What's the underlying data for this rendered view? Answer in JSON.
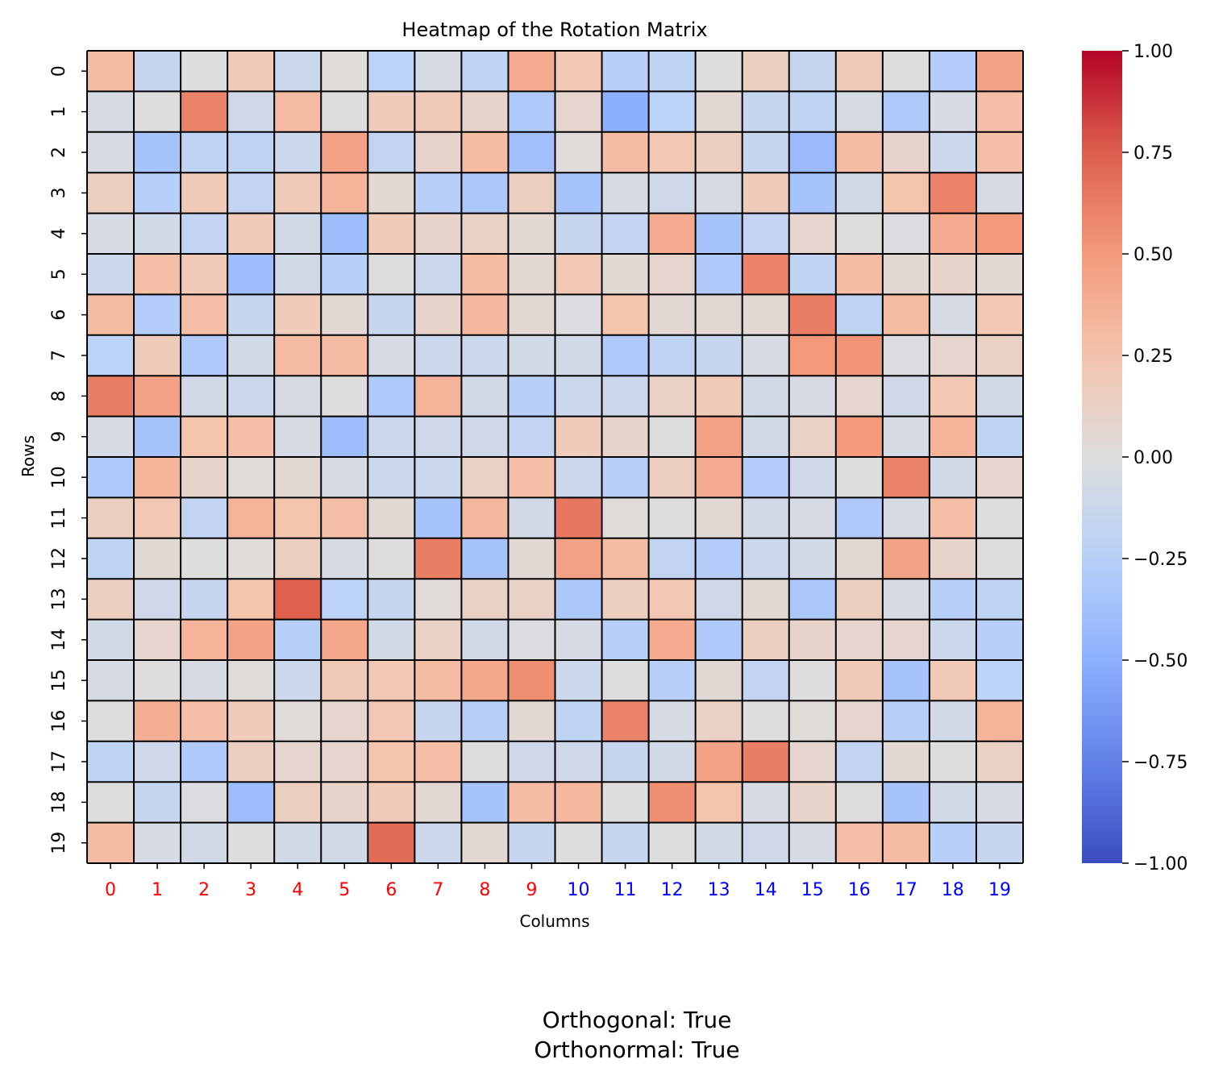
{
  "chart_data": {
    "type": "heatmap",
    "title": "Heatmap of the Rotation Matrix",
    "xlabel": "Columns",
    "ylabel": "Rows",
    "colormap": "coolwarm",
    "vmin": -1.0,
    "vmax": 1.0,
    "rows": [
      "0",
      "1",
      "2",
      "3",
      "4",
      "5",
      "6",
      "7",
      "8",
      "9",
      "10",
      "11",
      "12",
      "13",
      "14",
      "15",
      "16",
      "17",
      "18",
      "19"
    ],
    "columns": [
      "0",
      "1",
      "2",
      "3",
      "4",
      "5",
      "6",
      "7",
      "8",
      "9",
      "10",
      "11",
      "12",
      "13",
      "14",
      "15",
      "16",
      "17",
      "18",
      "19"
    ],
    "column_label_colors": [
      "#ff0000",
      "#ff0000",
      "#ff0000",
      "#ff0000",
      "#ff0000",
      "#ff0000",
      "#ff0000",
      "#ff0000",
      "#ff0000",
      "#ff0000",
      "#0000ff",
      "#0000ff",
      "#0000ff",
      "#0000ff",
      "#0000ff",
      "#0000ff",
      "#0000ff",
      "#0000ff",
      "#0000ff",
      "#0000ff"
    ],
    "colorbar_ticks": [
      "1.00",
      "0.75",
      "0.50",
      "0.25",
      "0.00",
      "−0.25",
      "−0.50",
      "−0.75",
      "−1.00"
    ],
    "colorbar_tick_values": [
      1.0,
      0.75,
      0.5,
      0.25,
      0.0,
      -0.25,
      -0.5,
      -0.75,
      -1.0
    ],
    "values": [
      [
        0.3,
        -0.15,
        0.0,
        0.2,
        -0.12,
        0.02,
        -0.22,
        -0.05,
        -0.2,
        0.4,
        0.22,
        -0.25,
        -0.2,
        0.0,
        0.15,
        -0.15,
        0.2,
        0.0,
        -0.28,
        0.45
      ],
      [
        -0.05,
        0.0,
        0.6,
        -0.1,
        0.3,
        0.0,
        0.18,
        0.2,
        0.1,
        -0.3,
        0.08,
        -0.5,
        -0.22,
        0.05,
        -0.15,
        -0.2,
        -0.05,
        -0.3,
        -0.05,
        0.28
      ],
      [
        -0.05,
        -0.35,
        -0.2,
        -0.2,
        -0.12,
        0.45,
        -0.18,
        0.1,
        0.3,
        -0.38,
        0.02,
        0.3,
        0.22,
        0.15,
        -0.15,
        -0.42,
        0.3,
        0.1,
        -0.12,
        0.28
      ],
      [
        0.15,
        -0.25,
        0.2,
        -0.18,
        0.2,
        0.35,
        0.05,
        -0.25,
        -0.32,
        0.15,
        -0.35,
        -0.05,
        -0.1,
        -0.05,
        0.18,
        -0.35,
        -0.08,
        0.25,
        0.6,
        -0.05
      ],
      [
        -0.05,
        -0.08,
        -0.18,
        0.2,
        -0.08,
        -0.4,
        0.2,
        0.1,
        0.12,
        0.05,
        -0.15,
        -0.18,
        0.4,
        -0.35,
        -0.18,
        0.08,
        0.0,
        -0.02,
        0.4,
        0.5
      ],
      [
        -0.12,
        0.28,
        0.2,
        -0.4,
        -0.08,
        -0.25,
        0.0,
        -0.12,
        0.3,
        0.05,
        0.22,
        0.05,
        0.08,
        -0.3,
        0.6,
        -0.2,
        0.3,
        0.05,
        0.1,
        0.05
      ],
      [
        0.3,
        -0.28,
        0.28,
        -0.15,
        0.18,
        0.05,
        -0.15,
        0.1,
        0.32,
        0.05,
        -0.02,
        0.25,
        0.05,
        0.05,
        0.05,
        0.62,
        -0.2,
        0.3,
        -0.05,
        0.22
      ],
      [
        -0.22,
        0.18,
        -0.3,
        -0.08,
        0.3,
        0.3,
        -0.05,
        -0.12,
        -0.12,
        -0.08,
        -0.08,
        -0.3,
        -0.2,
        -0.15,
        -0.05,
        0.5,
        0.52,
        -0.02,
        0.08,
        0.12
      ],
      [
        0.62,
        0.45,
        -0.08,
        -0.12,
        -0.05,
        0.0,
        -0.3,
        0.35,
        -0.08,
        -0.25,
        -0.12,
        -0.12,
        0.12,
        0.2,
        -0.08,
        -0.05,
        0.08,
        -0.1,
        0.22,
        -0.08
      ],
      [
        -0.05,
        -0.35,
        0.25,
        0.28,
        -0.05,
        -0.4,
        -0.12,
        -0.1,
        -0.1,
        -0.18,
        0.18,
        0.1,
        0.0,
        0.45,
        -0.08,
        0.12,
        0.5,
        -0.05,
        0.35,
        -0.2
      ],
      [
        -0.3,
        0.35,
        0.1,
        0.02,
        0.05,
        -0.05,
        -0.12,
        -0.12,
        0.12,
        0.28,
        -0.12,
        -0.25,
        0.15,
        0.4,
        -0.28,
        -0.1,
        0.0,
        0.6,
        -0.08,
        0.08
      ],
      [
        0.15,
        0.22,
        -0.18,
        0.35,
        0.25,
        0.28,
        0.05,
        -0.35,
        0.32,
        -0.08,
        0.65,
        0.02,
        0.0,
        0.05,
        -0.08,
        -0.05,
        -0.3,
        -0.05,
        0.28,
        0.0
      ],
      [
        -0.2,
        0.05,
        0.0,
        0.02,
        0.15,
        -0.05,
        0.0,
        0.62,
        -0.35,
        0.05,
        0.45,
        0.3,
        -0.18,
        -0.28,
        -0.12,
        -0.08,
        0.05,
        0.45,
        0.1,
        0.0
      ],
      [
        0.15,
        -0.1,
        -0.15,
        0.25,
        0.75,
        -0.22,
        -0.15,
        0.02,
        0.12,
        0.12,
        -0.32,
        0.15,
        0.22,
        -0.1,
        0.05,
        -0.32,
        0.15,
        -0.05,
        -0.25,
        -0.2
      ],
      [
        -0.08,
        0.08,
        0.35,
        0.45,
        -0.25,
        0.42,
        -0.08,
        0.12,
        -0.08,
        -0.02,
        -0.05,
        -0.25,
        0.4,
        -0.3,
        0.15,
        0.1,
        0.08,
        0.08,
        -0.12,
        -0.25
      ],
      [
        -0.05,
        0.0,
        -0.05,
        0.02,
        -0.12,
        0.2,
        0.22,
        0.3,
        0.42,
        0.55,
        -0.12,
        0.0,
        -0.25,
        0.05,
        -0.18,
        0.0,
        0.2,
        -0.35,
        0.2,
        -0.22
      ],
      [
        0.0,
        0.38,
        0.28,
        0.18,
        0.02,
        0.08,
        0.22,
        -0.15,
        -0.25,
        0.05,
        -0.2,
        0.6,
        -0.05,
        0.12,
        0.0,
        0.02,
        0.08,
        -0.25,
        -0.08,
        0.35
      ],
      [
        -0.2,
        -0.1,
        -0.3,
        0.15,
        0.08,
        0.08,
        0.25,
        0.28,
        0.0,
        -0.1,
        -0.1,
        -0.15,
        -0.08,
        0.45,
        0.62,
        0.08,
        -0.18,
        0.05,
        0.0,
        0.12
      ],
      [
        0.0,
        -0.15,
        -0.02,
        -0.4,
        0.15,
        0.1,
        0.2,
        0.05,
        -0.35,
        0.3,
        0.32,
        0.0,
        0.55,
        0.25,
        -0.05,
        0.1,
        0.0,
        -0.35,
        -0.08,
        -0.05
      ],
      [
        0.3,
        -0.05,
        -0.08,
        0.0,
        -0.08,
        -0.08,
        0.7,
        -0.12,
        0.05,
        -0.15,
        0.0,
        -0.15,
        0.0,
        -0.08,
        -0.1,
        -0.05,
        0.28,
        0.3,
        -0.25,
        -0.15
      ]
    ]
  },
  "footer": {
    "line1": "Orthogonal: True",
    "line2": "Orthonormal: True"
  }
}
